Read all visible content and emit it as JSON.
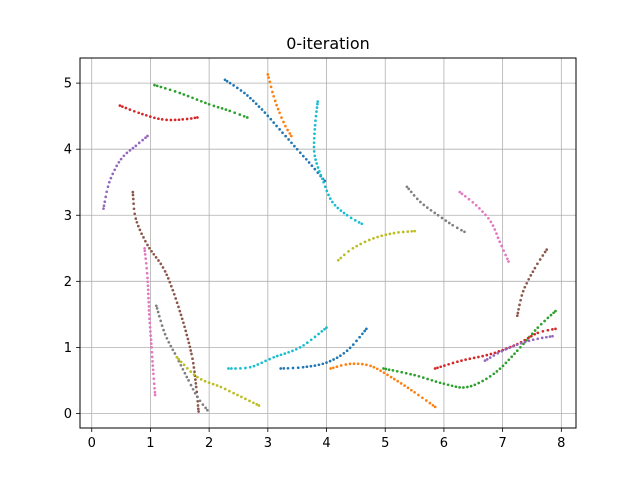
{
  "chart_data": {
    "type": "scatter",
    "title": "0-iteration",
    "xlabel": "",
    "ylabel": "",
    "xlim": [
      -0.2,
      8.25
    ],
    "ylim": [
      -0.22,
      5.38
    ],
    "x_ticks": [
      0,
      1,
      2,
      3,
      4,
      5,
      6,
      7,
      8
    ],
    "y_ticks": [
      0,
      1,
      2,
      3,
      4,
      5
    ],
    "grid": true,
    "legend": "none",
    "colors": [
      "#1f77b4",
      "#ff7f0e",
      "#2ca02c",
      "#d62728",
      "#9467bd",
      "#8c564b",
      "#e377c2",
      "#7f7f7f",
      "#bcbd22",
      "#17becf"
    ],
    "series": [
      {
        "color": "#1f77b4",
        "points": [
          [
            2.27,
            5.05
          ],
          [
            2.6,
            4.85
          ],
          [
            2.9,
            4.6
          ],
          [
            3.2,
            4.3
          ],
          [
            3.5,
            4.0
          ],
          [
            3.75,
            3.75
          ],
          [
            3.97,
            3.52
          ]
        ]
      },
      {
        "color": "#ff7f0e",
        "points": [
          [
            3.0,
            5.13
          ],
          [
            3.1,
            4.8
          ],
          [
            3.2,
            4.55
          ],
          [
            3.3,
            4.35
          ],
          [
            3.4,
            4.2
          ]
        ]
      },
      {
        "color": "#2ca02c",
        "points": [
          [
            1.07,
            4.97
          ],
          [
            1.5,
            4.85
          ],
          [
            2.0,
            4.68
          ],
          [
            2.35,
            4.58
          ],
          [
            2.65,
            4.48
          ]
        ]
      },
      {
        "color": "#d62728",
        "points": [
          [
            0.48,
            4.66
          ],
          [
            0.8,
            4.55
          ],
          [
            1.2,
            4.45
          ],
          [
            1.55,
            4.45
          ],
          [
            1.8,
            4.48
          ]
        ]
      },
      {
        "color": "#9467bd",
        "points": [
          [
            0.2,
            3.1
          ],
          [
            0.3,
            3.5
          ],
          [
            0.5,
            3.85
          ],
          [
            0.75,
            4.05
          ],
          [
            0.95,
            4.2
          ]
        ]
      },
      {
        "color": "#17becf",
        "points": [
          [
            3.85,
            4.72
          ],
          [
            3.8,
            4.3
          ],
          [
            3.8,
            3.9
          ],
          [
            3.95,
            3.5
          ],
          [
            4.1,
            3.2
          ],
          [
            4.35,
            3.0
          ],
          [
            4.6,
            2.87
          ]
        ]
      },
      {
        "color": "#8c564b",
        "points": [
          [
            0.7,
            3.35
          ],
          [
            0.75,
            2.95
          ],
          [
            0.95,
            2.55
          ],
          [
            1.25,
            2.15
          ],
          [
            1.5,
            1.55
          ],
          [
            1.7,
            0.9
          ],
          [
            1.78,
            0.4
          ],
          [
            1.82,
            0.03
          ]
        ]
      },
      {
        "color": "#e377c2",
        "points": [
          [
            0.9,
            2.5
          ],
          [
            0.95,
            2.05
          ],
          [
            0.98,
            1.5
          ],
          [
            1.02,
            1.0
          ],
          [
            1.05,
            0.6
          ],
          [
            1.08,
            0.28
          ]
        ]
      },
      {
        "color": "#7f7f7f",
        "points": [
          [
            1.1,
            1.63
          ],
          [
            1.25,
            1.2
          ],
          [
            1.45,
            0.85
          ],
          [
            1.65,
            0.5
          ],
          [
            1.8,
            0.25
          ],
          [
            1.97,
            0.05
          ]
        ]
      },
      {
        "color": "#bcbd22",
        "points": [
          [
            1.45,
            0.85
          ],
          [
            1.8,
            0.55
          ],
          [
            2.2,
            0.4
          ],
          [
            2.55,
            0.25
          ],
          [
            2.85,
            0.12
          ]
        ]
      },
      {
        "color": "#17becf",
        "points": [
          [
            2.33,
            0.68
          ],
          [
            2.7,
            0.7
          ],
          [
            3.1,
            0.85
          ],
          [
            3.55,
            1.0
          ],
          [
            4.0,
            1.3
          ]
        ]
      },
      {
        "color": "#1f77b4",
        "points": [
          [
            3.22,
            0.68
          ],
          [
            3.6,
            0.7
          ],
          [
            4.0,
            0.77
          ],
          [
            4.35,
            0.95
          ],
          [
            4.68,
            1.28
          ]
        ]
      },
      {
        "color": "#ff7f0e",
        "points": [
          [
            4.07,
            0.68
          ],
          [
            4.4,
            0.75
          ],
          [
            4.75,
            0.72
          ],
          [
            5.1,
            0.55
          ],
          [
            5.5,
            0.32
          ],
          [
            5.85,
            0.1
          ]
        ]
      },
      {
        "color": "#2ca02c",
        "points": [
          [
            4.97,
            0.68
          ],
          [
            5.5,
            0.58
          ],
          [
            6.0,
            0.45
          ],
          [
            6.4,
            0.4
          ],
          [
            6.85,
            0.6
          ],
          [
            7.25,
            0.95
          ],
          [
            7.6,
            1.3
          ],
          [
            7.9,
            1.55
          ]
        ]
      },
      {
        "color": "#d62728",
        "points": [
          [
            5.85,
            0.68
          ],
          [
            6.3,
            0.8
          ],
          [
            6.8,
            0.9
          ],
          [
            7.25,
            1.05
          ],
          [
            7.6,
            1.22
          ],
          [
            7.9,
            1.28
          ]
        ]
      },
      {
        "color": "#9467bd",
        "points": [
          [
            6.7,
            0.8
          ],
          [
            7.05,
            0.97
          ],
          [
            7.45,
            1.1
          ],
          [
            7.85,
            1.17
          ]
        ]
      },
      {
        "color": "#8c564b",
        "points": [
          [
            7.25,
            1.48
          ],
          [
            7.35,
            1.85
          ],
          [
            7.55,
            2.2
          ],
          [
            7.75,
            2.48
          ]
        ]
      },
      {
        "color": "#7f7f7f",
        "points": [
          [
            5.37,
            3.43
          ],
          [
            5.6,
            3.2
          ],
          [
            5.9,
            3.0
          ],
          [
            6.15,
            2.85
          ],
          [
            6.35,
            2.75
          ]
        ]
      },
      {
        "color": "#e377c2",
        "points": [
          [
            6.27,
            3.35
          ],
          [
            6.55,
            3.15
          ],
          [
            6.8,
            2.9
          ],
          [
            6.95,
            2.6
          ],
          [
            7.1,
            2.3
          ]
        ]
      },
      {
        "color": "#bcbd22",
        "points": [
          [
            4.2,
            2.32
          ],
          [
            4.45,
            2.5
          ],
          [
            4.8,
            2.65
          ],
          [
            5.15,
            2.73
          ],
          [
            5.5,
            2.76
          ]
        ]
      }
    ]
  }
}
